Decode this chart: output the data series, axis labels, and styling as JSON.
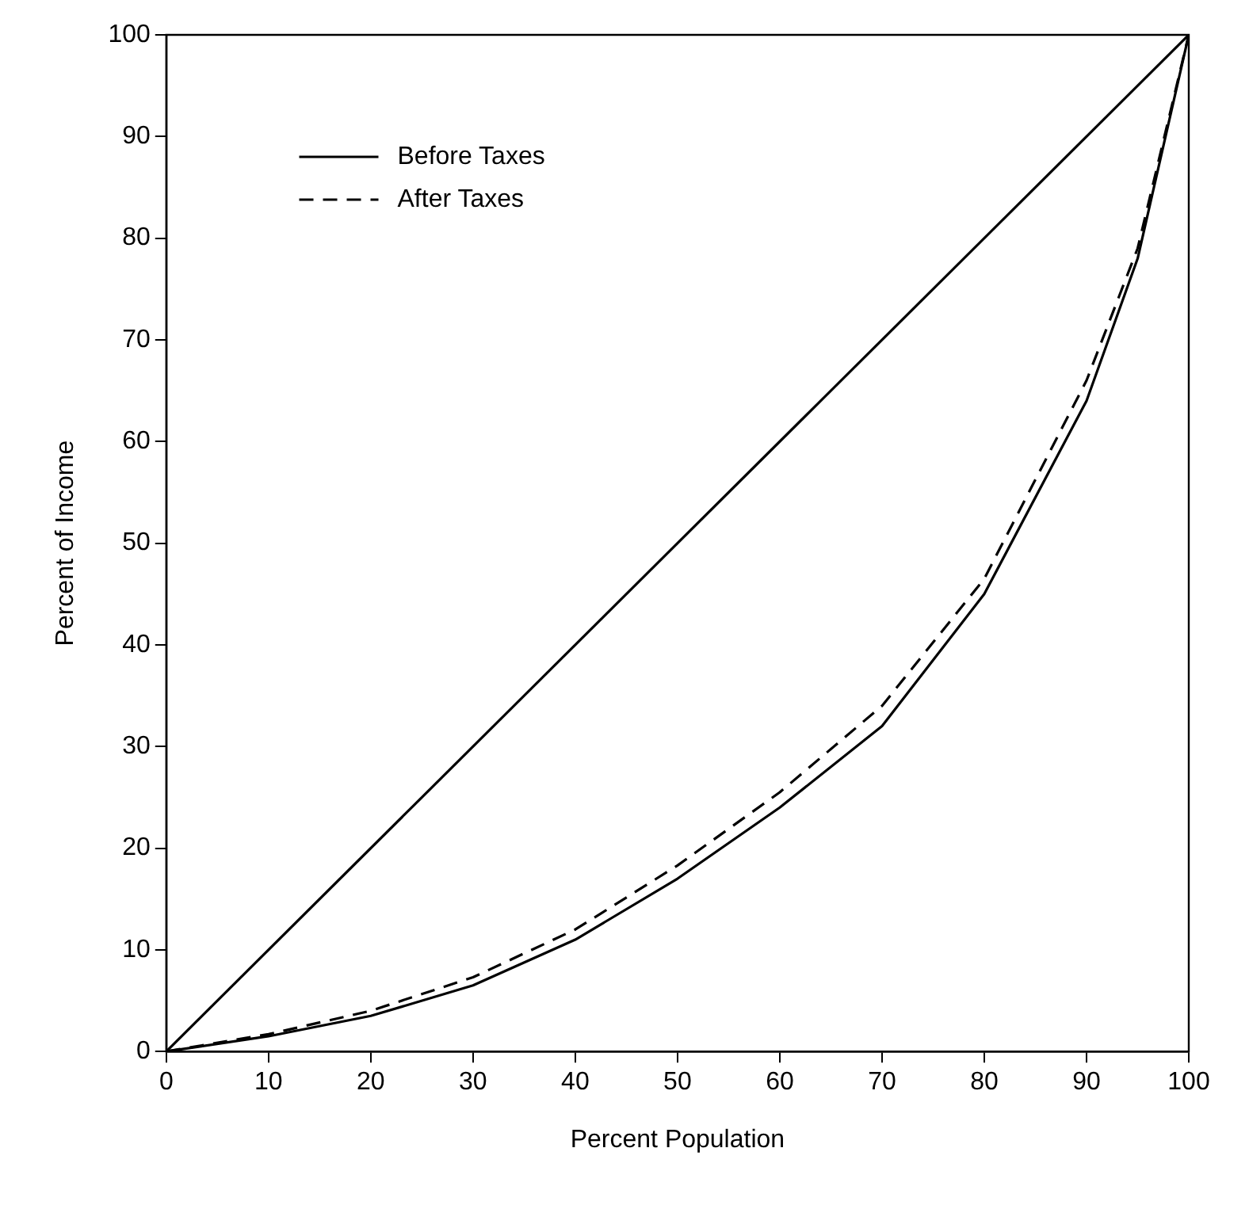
{
  "chart_data": {
    "type": "line",
    "xlabel": "Percent Population",
    "ylabel": "Percent of Income",
    "x": [
      0,
      10,
      20,
      30,
      40,
      50,
      60,
      70,
      80,
      90,
      95,
      100
    ],
    "series": [
      {
        "x": [
          0,
          100
        ],
        "values": [
          0,
          100
        ],
        "color": "#000000",
        "line_style": "solid"
      },
      {
        "name": "Before Taxes",
        "values": [
          0,
          1.5,
          3.5,
          6.5,
          11,
          17,
          24,
          32,
          45,
          64,
          78,
          100
        ],
        "color": "#000000",
        "line_style": "solid"
      },
      {
        "name": "After Taxes",
        "values": [
          0,
          1.7,
          4,
          7.3,
          12,
          18.3,
          25.5,
          34,
          46.5,
          66,
          79,
          100
        ],
        "color": "#000000",
        "line_style": "dashed"
      }
    ],
    "xlim": [
      0,
      100
    ],
    "ylim": [
      0,
      100
    ],
    "xticks": [
      0,
      10,
      20,
      30,
      40,
      50,
      60,
      70,
      80,
      90,
      100
    ],
    "yticks": [
      0,
      10,
      20,
      30,
      40,
      50,
      60,
      70,
      80,
      90,
      100
    ],
    "legend": "top left",
    "marker": "none"
  }
}
